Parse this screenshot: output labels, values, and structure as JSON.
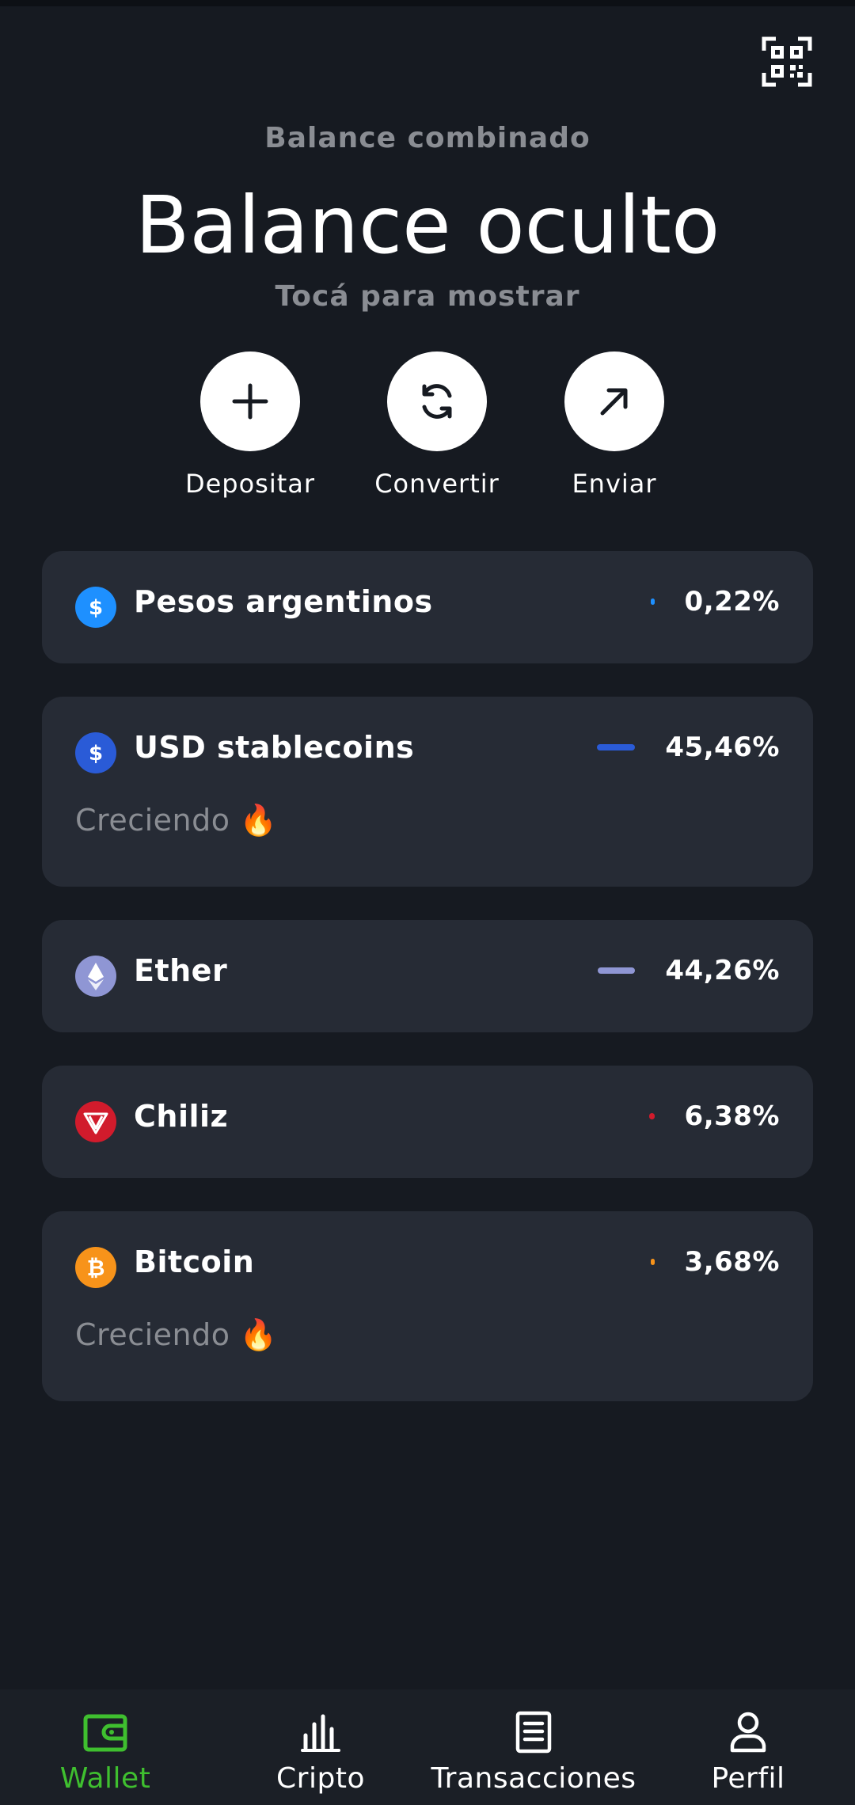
{
  "header": {
    "balance_label": "Balance combinado",
    "balance_value": "Balance oculto",
    "balance_hint": "Tocá para mostrar"
  },
  "actions": [
    {
      "label": "Depositar",
      "icon": "plus-icon"
    },
    {
      "label": "Convertir",
      "icon": "refresh-icon"
    },
    {
      "label": "Enviar",
      "icon": "arrow-up-right-icon"
    }
  ],
  "assets": [
    {
      "name": "Pesos argentinos",
      "percent_text": "0,22%",
      "share": 0.22,
      "color": "#1e90ff",
      "icon": "dollar-icon",
      "subtitle": ""
    },
    {
      "name": "USD stablecoins",
      "percent_text": "45,46%",
      "share": 45.46,
      "color": "#2a5bd7",
      "icon": "dollar-icon",
      "subtitle": "Creciendo",
      "subtitle_emoji": "🔥"
    },
    {
      "name": "Ether",
      "percent_text": "44,26%",
      "share": 44.26,
      "color": "#8f96d4",
      "icon": "ethereum-icon",
      "subtitle": ""
    },
    {
      "name": "Chiliz",
      "percent_text": "6,38%",
      "share": 6.38,
      "color": "#d11b2c",
      "icon": "chiliz-icon",
      "subtitle": ""
    },
    {
      "name": "Bitcoin",
      "percent_text": "3,68%",
      "share": 3.68,
      "color": "#f7931a",
      "icon": "bitcoin-icon",
      "subtitle": "Creciendo",
      "subtitle_emoji": "🔥"
    }
  ],
  "nav": [
    {
      "label": "Wallet",
      "icon": "wallet-icon",
      "active": true
    },
    {
      "label": "Cripto",
      "icon": "bar-chart-icon",
      "active": false
    },
    {
      "label": "Transacciones",
      "icon": "document-icon",
      "active": false
    },
    {
      "label": "Perfil",
      "icon": "user-icon",
      "active": false
    }
  ],
  "colors": {
    "background": "#161a21",
    "card": "#262b35",
    "muted_text": "#8a8d93",
    "accent_active": "#3fbf2f"
  }
}
